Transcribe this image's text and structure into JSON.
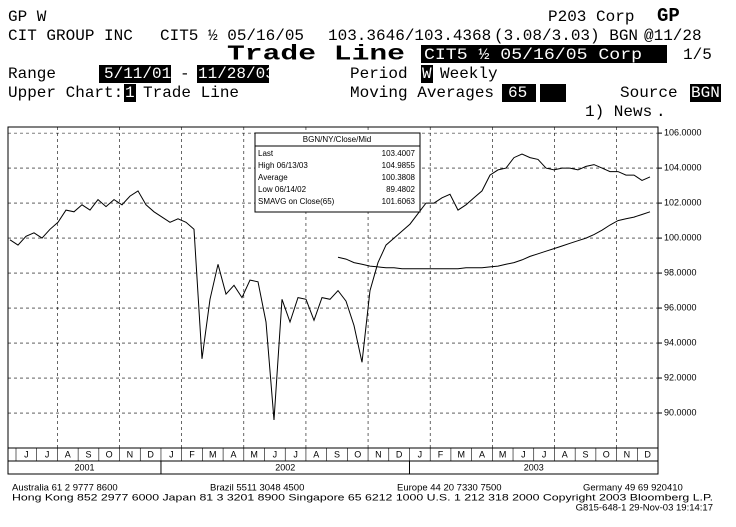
{
  "header": {
    "security_code": "GP W",
    "page_id": "P203 Corp",
    "menu_key": "GP",
    "issuer": "CIT GROUP INC",
    "security": "CIT5 ½ 05/16/05",
    "bid_ask": "103.3646/103.4368",
    "yield": "(3.08/3.03) BGN",
    "as_of": "@11/28",
    "screen_title": "Trade Line",
    "security_box": "CIT5 ½ 05/16/05 Corp",
    "page_count": "1/5",
    "range_label": "Range",
    "range_start": "5/11/01",
    "range_dash": "-",
    "range_end": "11/28/03",
    "period_label": "Period",
    "period_code": "W",
    "period_text": "Weekly",
    "upper_chart_label": "Upper Chart:",
    "upper_chart_code": "1",
    "upper_chart_text": "Trade Line",
    "ma_label": "Moving Averages",
    "ma_value": "65",
    "source_label": "Source",
    "source_value": "BGN",
    "news": "1) News",
    "dot": "."
  },
  "stats_box": {
    "title": "BGN/NY/Close/Mid",
    "rows": [
      [
        "Last",
        "103.4007"
      ],
      [
        "High 06/13/03",
        "104.9855"
      ],
      [
        "Average",
        "100.3808"
      ],
      [
        "Low 06/14/02",
        "89.4802"
      ],
      [
        "SMAVG on Close(65)",
        "101.6063"
      ]
    ]
  },
  "chart_data": {
    "type": "line",
    "ylim": [
      88,
      106.35
    ],
    "yticks": [
      {
        "value": 90,
        "label": "90.0000"
      },
      {
        "value": 92,
        "label": "92.0000"
      },
      {
        "value": 94,
        "label": "94.0000"
      },
      {
        "value": 96,
        "label": "96.0000"
      },
      {
        "value": 98,
        "label": "98.0000"
      },
      {
        "value": 100,
        "label": "100.0000"
      },
      {
        "value": 102,
        "label": "102.0000"
      },
      {
        "value": 104,
        "label": "104.0000"
      },
      {
        "value": 106,
        "label": "106.0000"
      }
    ],
    "grid": true,
    "x_axis": [
      {
        "year": "2001",
        "months": [
          "J",
          "J",
          "A",
          "S",
          "O",
          "N",
          "D"
        ]
      },
      {
        "year": "2002",
        "months": [
          "J",
          "F",
          "M",
          "A",
          "M",
          "J",
          "J",
          "A",
          "S",
          "O",
          "N",
          "D"
        ]
      },
      {
        "year": "2003",
        "months": [
          "J",
          "F",
          "M",
          "A",
          "M",
          "J",
          "J",
          "A",
          "S",
          "O",
          "N",
          "D"
        ]
      }
    ],
    "series": [
      {
        "color": "#000000",
        "values": [
          99.9,
          99.6,
          100.1,
          100.3,
          100.0,
          100.5,
          100.9,
          101.6,
          101.5,
          101.9,
          101.6,
          102.2,
          101.8,
          102.2,
          101.9,
          102.4,
          102.7,
          101.9,
          101.5,
          101.2,
          100.9,
          101.1,
          100.9,
          100.5,
          93.1,
          96.5,
          98.5,
          96.8,
          97.3,
          96.6,
          97.6,
          97.5,
          95.2,
          89.6,
          96.5,
          95.2,
          96.6,
          96.5,
          95.3,
          96.6,
          96.5,
          97.0,
          96.4,
          95.0,
          92.9,
          97.0,
          98.6,
          99.6,
          100.0,
          100.4,
          100.8,
          101.4,
          102.0,
          102.0,
          102.3,
          102.5,
          101.6,
          101.9,
          102.3,
          102.7,
          103.6,
          103.9,
          104.0,
          104.6,
          104.8,
          104.6,
          104.5,
          104.0,
          103.9,
          104.0,
          104.0,
          103.9,
          104.1,
          104.2,
          104.0,
          103.8,
          103.8,
          103.6,
          103.6,
          103.3,
          103.5
        ]
      },
      {
        "color": "#000000",
        "values": [
          null,
          null,
          null,
          null,
          null,
          null,
          null,
          null,
          null,
          null,
          null,
          null,
          null,
          null,
          null,
          null,
          null,
          null,
          null,
          null,
          null,
          null,
          null,
          null,
          null,
          null,
          null,
          null,
          null,
          null,
          null,
          null,
          null,
          null,
          null,
          null,
          null,
          null,
          null,
          null,
          null,
          98.9,
          98.8,
          98.6,
          98.5,
          98.4,
          98.35,
          98.3,
          98.3,
          98.25,
          98.25,
          98.25,
          98.25,
          98.25,
          98.25,
          98.25,
          98.25,
          98.3,
          98.3,
          98.3,
          98.35,
          98.4,
          98.5,
          98.6,
          98.75,
          98.95,
          99.1,
          99.25,
          99.4,
          99.55,
          99.7,
          99.85,
          100.0,
          100.2,
          100.45,
          100.75,
          101.0,
          101.1,
          101.2,
          101.35,
          101.5
        ]
      }
    ]
  },
  "footer": {
    "line1": [
      "Australia 61 2 9777 8600",
      "Brazil 5511 3048 4500",
      "Europe 44 20 7330 7500",
      "Germany 49 69 920410"
    ],
    "line2": "Hong Kong 852 2977 6000 Japan 81 3 3201 8900 Singapore 65 6212 1000 U.S. 1 212 318 2000 Copyright 2003 Bloomberg L.P.",
    "line3": "G815-648-1 29-Nov-03 19:14:17"
  }
}
